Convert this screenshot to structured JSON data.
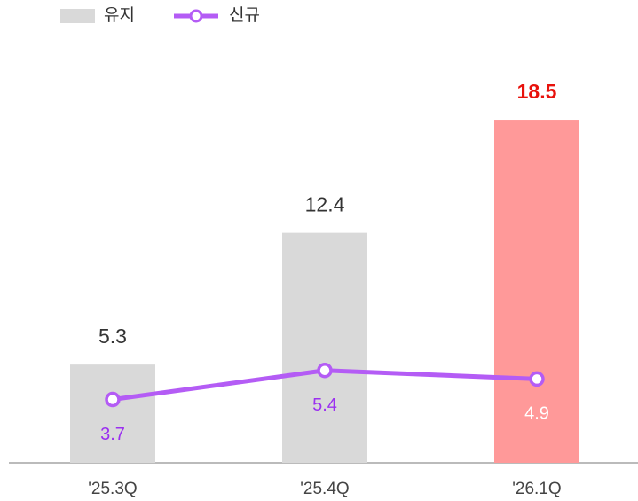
{
  "chart_data": {
    "type": "bar",
    "categories": [
      "'25.3Q",
      "'25.4Q",
      "'26.1Q"
    ],
    "ylim": [
      0,
      24
    ],
    "y2lim": [
      0,
      26
    ],
    "series": [
      {
        "name": "유지",
        "type": "bar",
        "color": "#d9d9d9",
        "colors": [
          "#d9d9d9",
          "#d9d9d9",
          "#ff9999"
        ],
        "label_colors": [
          "#333333",
          "#333333",
          "#e8120c"
        ],
        "values": [
          5.3,
          12.4,
          18.5
        ]
      },
      {
        "name": "신규",
        "type": "line",
        "axis": "y2",
        "color": "#b45cf5",
        "label_colors": [
          "#9b30f0",
          "#9b30f0",
          "#ffffff"
        ],
        "values": [
          3.7,
          5.4,
          4.9
        ]
      }
    ]
  }
}
